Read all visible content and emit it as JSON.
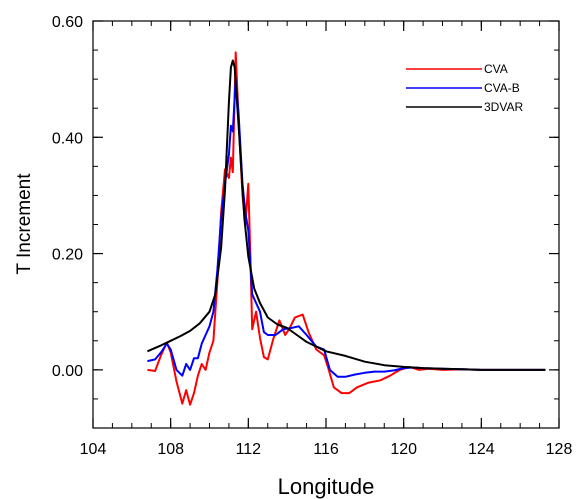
{
  "chart_data": {
    "type": "line",
    "xlabel": "Longitude",
    "ylabel": "T Increment",
    "xlim": [
      104,
      128
    ],
    "ylim": [
      -0.1,
      0.6
    ],
    "x_ticks": [
      104,
      108,
      112,
      116,
      120,
      124,
      128
    ],
    "x_tick_labels": [
      "104",
      "108",
      "112",
      "116",
      "120",
      "124",
      "128"
    ],
    "y_ticks": [
      0.0,
      0.2,
      0.4,
      0.6
    ],
    "y_tick_labels": [
      "0.00",
      "0.20",
      "0.40",
      "0.60"
    ],
    "x_minor_step": 1,
    "y_minor_step": 0.05,
    "grid": false,
    "legend_position": "top-right",
    "series": [
      {
        "name": "CVA",
        "color": "#ff0000",
        "points": [
          [
            106.8,
            0.0
          ],
          [
            107.2,
            -0.002
          ],
          [
            107.5,
            0.025
          ],
          [
            107.8,
            0.047
          ],
          [
            108.0,
            0.03
          ],
          [
            108.3,
            -0.02
          ],
          [
            108.6,
            -0.058
          ],
          [
            108.8,
            -0.035
          ],
          [
            109.0,
            -0.06
          ],
          [
            109.2,
            -0.04
          ],
          [
            109.4,
            -0.01
          ],
          [
            109.6,
            0.01
          ],
          [
            109.8,
            0.0
          ],
          [
            110.0,
            0.03
          ],
          [
            110.2,
            0.05
          ],
          [
            110.4,
            0.15
          ],
          [
            110.6,
            0.27
          ],
          [
            110.8,
            0.345
          ],
          [
            111.0,
            0.33
          ],
          [
            111.1,
            0.365
          ],
          [
            111.2,
            0.34
          ],
          [
            111.35,
            0.546
          ],
          [
            111.5,
            0.43
          ],
          [
            111.7,
            0.3
          ],
          [
            111.85,
            0.25
          ],
          [
            112.0,
            0.32
          ],
          [
            112.1,
            0.2
          ],
          [
            112.2,
            0.07
          ],
          [
            112.4,
            0.1
          ],
          [
            112.6,
            0.055
          ],
          [
            112.8,
            0.022
          ],
          [
            113.0,
            0.018
          ],
          [
            113.3,
            0.055
          ],
          [
            113.6,
            0.085
          ],
          [
            113.9,
            0.06
          ],
          [
            114.1,
            0.07
          ],
          [
            114.4,
            0.09
          ],
          [
            114.8,
            0.095
          ],
          [
            115.1,
            0.065
          ],
          [
            115.5,
            0.035
          ],
          [
            115.9,
            0.025
          ],
          [
            116.1,
            0.005
          ],
          [
            116.4,
            -0.03
          ],
          [
            116.8,
            -0.04
          ],
          [
            117.2,
            -0.04
          ],
          [
            117.6,
            -0.03
          ],
          [
            118.2,
            -0.022
          ],
          [
            118.8,
            -0.018
          ],
          [
            119.3,
            -0.01
          ],
          [
            119.8,
            0.0
          ],
          [
            120.3,
            0.005
          ],
          [
            120.8,
            0.0
          ],
          [
            121.3,
            0.002
          ],
          [
            122.0,
            0.0
          ],
          [
            123.0,
            0.001
          ],
          [
            124.0,
            0.0
          ],
          [
            125.0,
            0.0
          ],
          [
            126.0,
            0.0
          ],
          [
            127.3,
            0.0
          ]
        ]
      },
      {
        "name": "CVA-B",
        "color": "#0000ff",
        "points": [
          [
            106.8,
            0.015
          ],
          [
            107.2,
            0.018
          ],
          [
            107.5,
            0.03
          ],
          [
            107.8,
            0.045
          ],
          [
            108.0,
            0.035
          ],
          [
            108.3,
            0.0
          ],
          [
            108.6,
            -0.01
          ],
          [
            108.8,
            0.01
          ],
          [
            109.0,
            0.0
          ],
          [
            109.2,
            0.02
          ],
          [
            109.4,
            0.02
          ],
          [
            109.6,
            0.045
          ],
          [
            109.8,
            0.06
          ],
          [
            110.0,
            0.075
          ],
          [
            110.2,
            0.1
          ],
          [
            110.4,
            0.17
          ],
          [
            110.6,
            0.26
          ],
          [
            110.8,
            0.32
          ],
          [
            111.0,
            0.37
          ],
          [
            111.1,
            0.42
          ],
          [
            111.2,
            0.41
          ],
          [
            111.35,
            0.5
          ],
          [
            111.5,
            0.44
          ],
          [
            111.7,
            0.32
          ],
          [
            111.85,
            0.27
          ],
          [
            112.0,
            0.24
          ],
          [
            112.2,
            0.13
          ],
          [
            112.4,
            0.115
          ],
          [
            112.6,
            0.1
          ],
          [
            112.8,
            0.065
          ],
          [
            113.0,
            0.06
          ],
          [
            113.4,
            0.06
          ],
          [
            113.8,
            0.07
          ],
          [
            114.2,
            0.072
          ],
          [
            114.6,
            0.075
          ],
          [
            115.0,
            0.06
          ],
          [
            115.5,
            0.04
          ],
          [
            115.9,
            0.035
          ],
          [
            116.2,
            0.0
          ],
          [
            116.6,
            -0.012
          ],
          [
            117.0,
            -0.012
          ],
          [
            117.5,
            -0.008
          ],
          [
            118.0,
            -0.005
          ],
          [
            118.5,
            -0.003
          ],
          [
            119.0,
            -0.003
          ],
          [
            119.5,
            -0.001
          ],
          [
            120.0,
            0.003
          ],
          [
            120.5,
            0.004
          ],
          [
            121.0,
            0.003
          ],
          [
            122.0,
            0.002
          ],
          [
            123.0,
            0.001
          ],
          [
            124.0,
            0.0
          ],
          [
            125.0,
            0.0
          ],
          [
            126.0,
            0.0
          ],
          [
            127.3,
            0.0
          ]
        ]
      },
      {
        "name": "3DVAR",
        "color": "#000000",
        "points": [
          [
            106.8,
            0.032
          ],
          [
            107.5,
            0.042
          ],
          [
            108.0,
            0.05
          ],
          [
            108.5,
            0.058
          ],
          [
            109.0,
            0.067
          ],
          [
            109.5,
            0.08
          ],
          [
            110.0,
            0.1
          ],
          [
            110.3,
            0.13
          ],
          [
            110.6,
            0.21
          ],
          [
            110.8,
            0.31
          ],
          [
            111.0,
            0.46
          ],
          [
            111.1,
            0.52
          ],
          [
            111.2,
            0.532
          ],
          [
            111.3,
            0.52
          ],
          [
            111.5,
            0.42
          ],
          [
            111.8,
            0.26
          ],
          [
            112.0,
            0.195
          ],
          [
            112.3,
            0.14
          ],
          [
            112.6,
            0.115
          ],
          [
            113.0,
            0.09
          ],
          [
            113.5,
            0.078
          ],
          [
            114.0,
            0.072
          ],
          [
            114.5,
            0.06
          ],
          [
            115.0,
            0.048
          ],
          [
            115.5,
            0.04
          ],
          [
            116.0,
            0.032
          ],
          [
            117.0,
            0.024
          ],
          [
            118.0,
            0.014
          ],
          [
            119.0,
            0.008
          ],
          [
            120.0,
            0.005
          ],
          [
            121.0,
            0.003
          ],
          [
            122.0,
            0.002
          ],
          [
            123.0,
            0.001
          ],
          [
            124.0,
            0.0
          ],
          [
            125.0,
            0.0
          ],
          [
            126.0,
            0.0
          ],
          [
            127.3,
            0.0
          ]
        ]
      }
    ]
  }
}
